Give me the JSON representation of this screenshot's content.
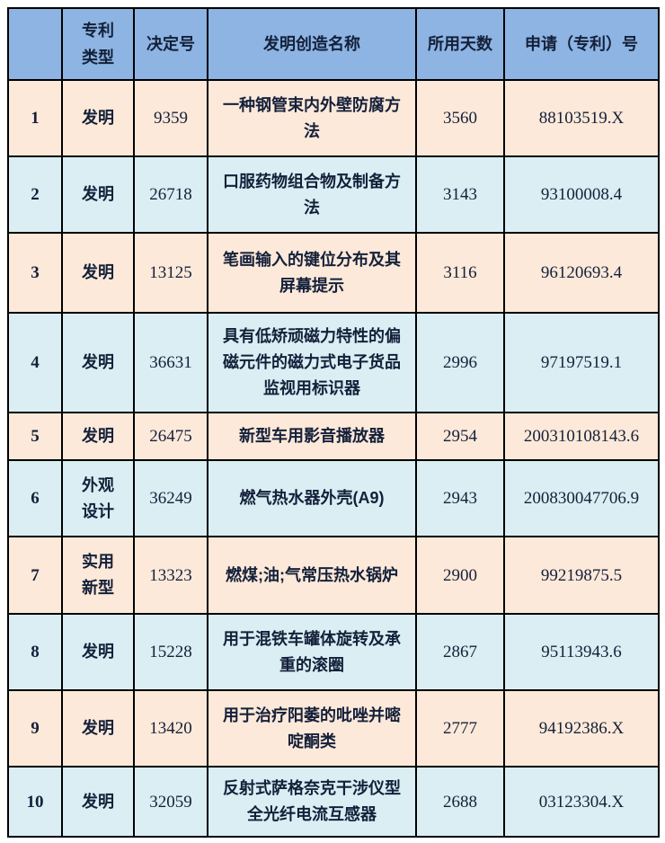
{
  "colors": {
    "header_bg": "#8DB4E2",
    "row_odd_bg": "#FDE9D9",
    "row_even_bg": "#DAEEF3",
    "border_color": "#000000",
    "text_color": "#14203a"
  },
  "table": {
    "headers": [
      "",
      "专利类型",
      "决定号",
      "发明创造名称",
      "所用天数",
      "申请（专利）号"
    ],
    "rows": [
      {
        "no": "1",
        "type": "发明",
        "decision": "9359",
        "name": "一种钢管束内外壁防腐方法",
        "days": "3560",
        "app_no": "88103519.X"
      },
      {
        "no": "2",
        "type": "发明",
        "decision": "26718",
        "name": "口服药物组合物及制备方法",
        "days": "3143",
        "app_no": "93100008.4"
      },
      {
        "no": "3",
        "type": "发明",
        "decision": "13125",
        "name": "笔画输入的键位分布及其屏幕提示",
        "days": "3116",
        "app_no": "96120693.4"
      },
      {
        "no": "4",
        "type": "发明",
        "decision": "36631",
        "name": "具有低矫顽磁力特性的偏磁元件的磁力式电子货品监视用标识器",
        "days": "2996",
        "app_no": "97197519.1"
      },
      {
        "no": "5",
        "type": "发明",
        "decision": "26475",
        "name": "新型车用影音播放器",
        "days": "2954",
        "app_no": "200310108143.6"
      },
      {
        "no": "6",
        "type": "外观设计",
        "decision": "36249",
        "name": "燃气热水器外壳(A9)",
        "days": "2943",
        "app_no": "200830047706.9"
      },
      {
        "no": "7",
        "type": "实用新型",
        "decision": "13323",
        "name": "燃煤;油;气常压热水锅炉",
        "days": "2900",
        "app_no": "99219875.5"
      },
      {
        "no": "8",
        "type": "发明",
        "decision": "15228",
        "name": "用于混铁车罐体旋转及承重的滚圈",
        "days": "2867",
        "app_no": "95113943.6"
      },
      {
        "no": "9",
        "type": "发明",
        "decision": "13420",
        "name": "用于治疗阳萎的吡唑并嘧啶酮类",
        "days": "2777",
        "app_no": "94192386.X"
      },
      {
        "no": "10",
        "type": "发明",
        "decision": "32059",
        "name": "反射式萨格奈克干涉仪型全光纤电流互感器",
        "days": "2688",
        "app_no": "03123304.X"
      }
    ]
  }
}
